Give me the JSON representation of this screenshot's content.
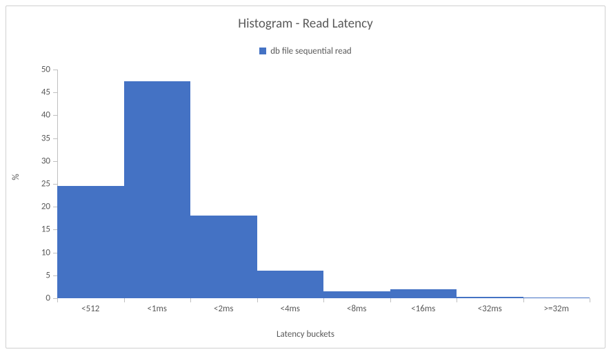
{
  "chart": {
    "type": "bar",
    "title": "Histogram - Read Latency",
    "title_fontsize": 19,
    "title_color": "#595959",
    "legend": {
      "items": [
        {
          "label": "db file sequential read",
          "color": "#4472c4"
        }
      ],
      "fontsize": 13,
      "text_color": "#595959",
      "swatch_size": 10
    },
    "y_axis": {
      "title": "%",
      "fontsize": 13,
      "label_fontsize": 13,
      "label_color": "#595959",
      "min": 0,
      "max": 50,
      "tick_step": 5
    },
    "x_axis": {
      "title": "Latency buckets",
      "fontsize": 13,
      "label_fontsize": 13,
      "label_color": "#595959",
      "categories": [
        "<512",
        "<1ms",
        "<2ms",
        "<4ms",
        "<8ms",
        "<16ms",
        "<32ms",
        ">=32m"
      ]
    },
    "series": {
      "color": "#4472c4",
      "bar_width_ratio": 1.0,
      "values": [
        24.5,
        47.5,
        18,
        6,
        1.5,
        2,
        0.3,
        0.1
      ]
    },
    "background_color": "#ffffff",
    "axis_line_color": "#bfbfbf",
    "border_color": "#d0d0d0"
  }
}
